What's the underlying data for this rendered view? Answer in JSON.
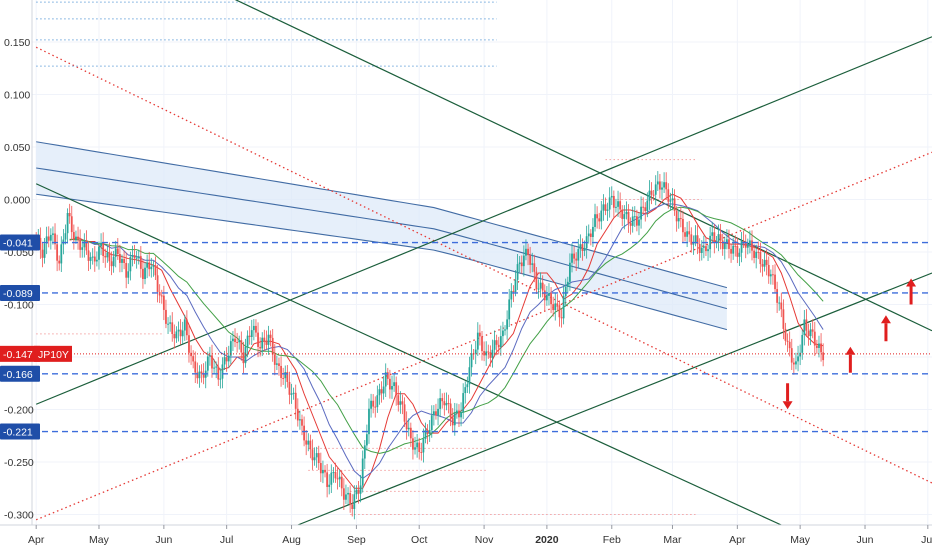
{
  "chart_data": {
    "type": "candlestick",
    "symbol": "JP10Y",
    "colors": {
      "up": "#26a69a",
      "down": "#ef5350",
      "level_line": "#3d6ddb",
      "level_badge": "#1f4ea8",
      "price_line": "#e01e1e",
      "price_badge": "#e01e1e",
      "channel": "#1b5e3b",
      "dotted_red": "#e53935",
      "band_fill": "#dbe8f8",
      "band_line": "#2e5c9a",
      "ma_red": "#e53935",
      "ma_blue": "#5c6bc0",
      "ma_green": "#43a047",
      "arrow": "#e01e1e"
    },
    "y_axis": {
      "range": [
        -0.31,
        0.19
      ],
      "ticks": [
        "0.150",
        "0.100",
        "0.050",
        "0.000",
        "-0.050",
        "-0.100",
        "-0.150",
        "-0.200",
        "-0.250",
        "-0.300"
      ],
      "tick_values": [
        0.15,
        0.1,
        0.05,
        0.0,
        -0.05,
        -0.1,
        -0.15,
        -0.2,
        -0.25,
        -0.3
      ]
    },
    "x_axis": {
      "ticks": [
        {
          "label": "Apr",
          "t": 0
        },
        {
          "label": "May",
          "t": 30
        },
        {
          "label": "Jun",
          "t": 61
        },
        {
          "label": "Jul",
          "t": 91
        },
        {
          "label": "Aug",
          "t": 122
        },
        {
          "label": "Sep",
          "t": 153
        },
        {
          "label": "Oct",
          "t": 183
        },
        {
          "label": "Nov",
          "t": 214
        },
        {
          "label": "2020",
          "t": 244,
          "bold": true
        },
        {
          "label": "Feb",
          "t": 275
        },
        {
          "label": "Mar",
          "t": 304
        },
        {
          "label": "Apr",
          "t": 335
        },
        {
          "label": "May",
          "t": 365
        },
        {
          "label": "Jun",
          "t": 396
        },
        {
          "label": "Jul",
          "t": 426
        }
      ],
      "range": [
        -2,
        428
      ]
    },
    "levels": [
      {
        "label": "-0.041",
        "value": -0.041
      },
      {
        "label": "-0.089",
        "value": -0.089
      },
      {
        "label": "-0.166",
        "value": -0.166
      },
      {
        "label": "-0.221",
        "value": -0.221
      }
    ],
    "current_price": {
      "label": "-0.147",
      "value": -0.147,
      "tag": "JP10Y"
    },
    "series": [
      {
        "name": "",
        "values": [
          [
            0,
            -0.035
          ],
          [
            4,
            -0.05
          ],
          [
            8,
            -0.03
          ],
          [
            12,
            -0.06
          ],
          [
            16,
            -0.015
          ],
          [
            20,
            -0.04
          ],
          [
            24,
            -0.045
          ],
          [
            28,
            -0.06
          ],
          [
            32,
            -0.045
          ],
          [
            36,
            -0.06
          ],
          [
            40,
            -0.05
          ],
          [
            44,
            -0.07
          ],
          [
            48,
            -0.05
          ],
          [
            52,
            -0.07
          ],
          [
            56,
            -0.06
          ],
          [
            60,
            -0.09
          ],
          [
            64,
            -0.12
          ],
          [
            68,
            -0.13
          ],
          [
            72,
            -0.12
          ],
          [
            76,
            -0.16
          ],
          [
            80,
            -0.17
          ],
          [
            84,
            -0.15
          ],
          [
            88,
            -0.17
          ],
          [
            92,
            -0.15
          ],
          [
            96,
            -0.13
          ],
          [
            100,
            -0.15
          ],
          [
            104,
            -0.12
          ],
          [
            108,
            -0.14
          ],
          [
            112,
            -0.13
          ],
          [
            116,
            -0.16
          ],
          [
            120,
            -0.17
          ],
          [
            124,
            -0.19
          ],
          [
            128,
            -0.22
          ],
          [
            132,
            -0.24
          ],
          [
            136,
            -0.25
          ],
          [
            140,
            -0.27
          ],
          [
            144,
            -0.26
          ],
          [
            148,
            -0.28
          ],
          [
            152,
            -0.29
          ],
          [
            156,
            -0.27
          ],
          [
            160,
            -0.2
          ],
          [
            164,
            -0.19
          ],
          [
            168,
            -0.17
          ],
          [
            172,
            -0.18
          ],
          [
            176,
            -0.2
          ],
          [
            180,
            -0.23
          ],
          [
            184,
            -0.24
          ],
          [
            188,
            -0.22
          ],
          [
            192,
            -0.2
          ],
          [
            196,
            -0.19
          ],
          [
            200,
            -0.21
          ],
          [
            204,
            -0.2
          ],
          [
            208,
            -0.16
          ],
          [
            212,
            -0.13
          ],
          [
            216,
            -0.15
          ],
          [
            220,
            -0.14
          ],
          [
            224,
            -0.13
          ],
          [
            228,
            -0.09
          ],
          [
            232,
            -0.06
          ],
          [
            236,
            -0.05
          ],
          [
            240,
            -0.08
          ],
          [
            244,
            -0.09
          ],
          [
            248,
            -0.1
          ],
          [
            252,
            -0.11
          ],
          [
            256,
            -0.06
          ],
          [
            260,
            -0.05
          ],
          [
            264,
            -0.04
          ],
          [
            268,
            -0.02
          ],
          [
            272,
            -0.01
          ],
          [
            276,
            0.0
          ],
          [
            280,
            -0.01
          ],
          [
            284,
            -0.02
          ],
          [
            288,
            -0.02
          ],
          [
            292,
            -0.005
          ],
          [
            296,
            0.01
          ],
          [
            300,
            0.015
          ],
          [
            304,
            0.0
          ],
          [
            308,
            -0.02
          ],
          [
            312,
            -0.035
          ],
          [
            316,
            -0.04
          ],
          [
            320,
            -0.05
          ],
          [
            324,
            -0.035
          ],
          [
            328,
            -0.04
          ],
          [
            332,
            -0.045
          ],
          [
            336,
            -0.05
          ],
          [
            340,
            -0.04
          ],
          [
            344,
            -0.05
          ],
          [
            348,
            -0.06
          ],
          [
            352,
            -0.07
          ],
          [
            356,
            -0.1
          ],
          [
            360,
            -0.14
          ],
          [
            364,
            -0.16
          ],
          [
            368,
            -0.12
          ],
          [
            372,
            -0.13
          ],
          [
            376,
            -0.147
          ]
        ]
      }
    ],
    "arrows": [
      {
        "direction": "down",
        "t": 359,
        "value": -0.175
      },
      {
        "direction": "up",
        "t": 389,
        "value": -0.165
      },
      {
        "direction": "up",
        "t": 406,
        "value": -0.135
      },
      {
        "direction": "up",
        "t": 418,
        "value": -0.1
      }
    ]
  }
}
